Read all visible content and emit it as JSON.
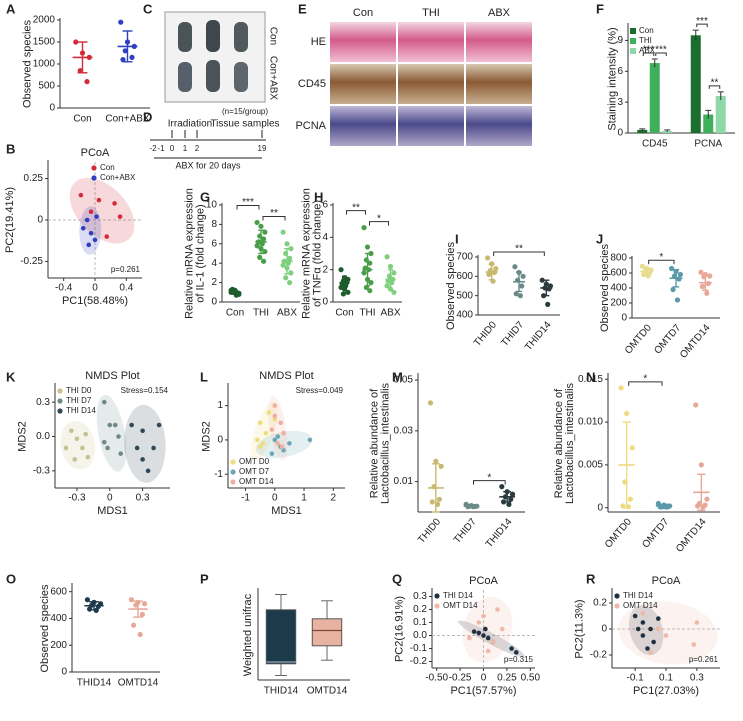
{
  "panel_letters": [
    "A",
    "B",
    "C",
    "D",
    "E",
    "F",
    "G",
    "H",
    "I",
    "J",
    "K",
    "L",
    "M",
    "N",
    "O",
    "P",
    "Q",
    "R"
  ],
  "panel_c": {
    "labels": [
      "Con",
      "Con+ABX"
    ]
  },
  "panel_d": {
    "event": "Irradiation",
    "sample_note": "(n=15/group)",
    "sample_label": "Tissue samples",
    "days": [
      -2,
      -1,
      0,
      1,
      2,
      19
    ],
    "treatment": "ABX for 20 days"
  },
  "panel_e": {
    "columns": [
      "Con",
      "THI",
      "ABX"
    ],
    "rows": [
      "HE",
      "CD45",
      "PCNA"
    ]
  },
  "chart_data": [
    {
      "type": "dot",
      "ylabel": "Observed species",
      "categories": [
        "Con",
        "Con+ABX"
      ],
      "ylim": [
        0,
        2000
      ],
      "yticks": [
        0,
        500,
        1000,
        1500,
        2000
      ],
      "groups": [
        {
          "color": "#d42a3c",
          "values": [
            1500,
            1250,
            1150,
            850,
            600
          ],
          "mean": 1150,
          "sd": 350
        },
        {
          "color": "#2f3fc0",
          "values": [
            1950,
            1500,
            1400,
            1300,
            1150,
            1100
          ],
          "mean": 1400,
          "sd": 350
        }
      ]
    },
    {
      "type": "scatter",
      "title": "PCoA",
      "xlabel": "PC1(58.48%)",
      "ylabel": "PC2(19.41%)",
      "xlim": [
        -0.6,
        0.6
      ],
      "ylim": [
        -0.35,
        0.35
      ],
      "xticks": [
        -0.4,
        0,
        0.4
      ],
      "yticks": [
        -0.25,
        0,
        0.25
      ],
      "annotation": "p=0.261",
      "annotation_corner": "bottom-right",
      "legend": "top-right",
      "zero_lines": true,
      "series": [
        {
          "name": "Con",
          "color": "#d42a3c",
          "x": [
            0.25,
            -0.05,
            0.15,
            0.05,
            0.32,
            -0.18
          ],
          "y": [
            0.1,
            0.05,
            -0.1,
            0.12,
            0.02,
            0.15
          ]
        },
        {
          "name": "Con+ABX",
          "color": "#2f3fc0",
          "x": [
            -0.15,
            -0.05,
            -0.1,
            0,
            0.02,
            -0.08
          ],
          "y": [
            -0.05,
            -0.08,
            0,
            -0.12,
            0.02,
            -0.15
          ]
        }
      ]
    },
    {
      "type": "bar",
      "ylabel": "Staining intensity (%)",
      "categories": [
        "CD45",
        "PCNA"
      ],
      "ylim": [
        0,
        10.5
      ],
      "yticks": [
        0,
        3,
        6,
        9
      ],
      "legend": "top-left",
      "series": [
        {
          "name": "Con",
          "color": "#1a6e2e",
          "values": [
            0.3,
            9.5
          ],
          "errors": [
            0.1,
            0.5
          ]
        },
        {
          "name": "THI",
          "color": "#3faf5a",
          "values": [
            6.8,
            1.8
          ],
          "errors": [
            0.4,
            0.4
          ]
        },
        {
          "name": "ABX",
          "color": "#8fd8a8",
          "values": [
            0.2,
            3.6
          ],
          "errors": [
            0.1,
            0.4
          ]
        }
      ],
      "significance": [
        {
          "category": 0,
          "pair": [
            0,
            1
          ],
          "label": "***"
        },
        {
          "category": 0,
          "pair": [
            1,
            2
          ],
          "label": "***"
        },
        {
          "category": 1,
          "pair": [
            0,
            1
          ],
          "label": "***"
        },
        {
          "category": 1,
          "pair": [
            1,
            2
          ],
          "label": "**"
        }
      ]
    },
    {
      "type": "dot",
      "ylabel": [
        "Relative mRNA expression",
        "of IL-1 (fold change)"
      ],
      "categories": [
        "Con",
        "THI",
        "ABX"
      ],
      "ylim": [
        0,
        10
      ],
      "yticks": [
        0,
        2,
        4,
        6,
        8,
        10
      ],
      "groups": [
        {
          "color": "#1e5c2e",
          "values": [
            1.2,
            1.0,
            0.8,
            1.1,
            0.9,
            1.3,
            0.7,
            1.0,
            1.2,
            0.9,
            1.1,
            0.8
          ],
          "mean": 1.0,
          "sd": 0.2
        },
        {
          "color": "#4a9e4a",
          "values": [
            8.2,
            7.8,
            7.2,
            6.8,
            6.5,
            6.2,
            6.0,
            5.8,
            5.5,
            5.2,
            4.6,
            4.2
          ],
          "mean": 6.2,
          "sd": 1.2
        },
        {
          "color": "#7fcf7f",
          "values": [
            7.2,
            6.0,
            5.5,
            5.0,
            4.5,
            4.2,
            4.0,
            3.8,
            3.5,
            3.0,
            2.5,
            2.0
          ],
          "mean": 4.2,
          "sd": 1.3
        }
      ],
      "significance": [
        {
          "pair": [
            0,
            1
          ],
          "label": "***"
        },
        {
          "pair": [
            1,
            2
          ],
          "label": "**"
        }
      ]
    },
    {
      "type": "dot",
      "ylabel": [
        "Relative mRNA expression",
        "of TNFα (fold change)"
      ],
      "categories": [
        "Con",
        "THI",
        "ABX"
      ],
      "ylim": [
        0,
        6
      ],
      "yticks": [
        0,
        2,
        4,
        6
      ],
      "groups": [
        {
          "color": "#1e5c2e",
          "values": [
            2.0,
            1.5,
            1.4,
            1.3,
            1.2,
            1.1,
            1.0,
            0.9,
            0.8,
            0.6,
            0.5
          ],
          "mean": 1.2,
          "sd": 0.4
        },
        {
          "color": "#4a9e4a",
          "values": [
            4.6,
            3.4,
            3.0,
            2.6,
            2.4,
            2.1,
            2.0,
            1.8,
            1.4,
            1.2,
            0.9,
            0.7
          ],
          "mean": 2.0,
          "sd": 1.0
        },
        {
          "color": "#7fcf7f",
          "values": [
            2.8,
            2.2,
            1.8,
            1.6,
            1.4,
            1.3,
            1.2,
            1.0,
            0.8,
            0.6
          ],
          "mean": 1.4,
          "sd": 0.6
        }
      ],
      "significance": [
        {
          "pair": [
            0,
            1
          ],
          "label": "**"
        },
        {
          "pair": [
            1,
            2
          ],
          "label": "*"
        }
      ]
    },
    {
      "type": "dot",
      "ylabel": "Observed species",
      "categories": [
        "THID0",
        "THID7",
        "THID14"
      ],
      "ylim": [
        400,
        700
      ],
      "yticks": [
        400,
        500,
        600,
        700
      ],
      "groups": [
        {
          "color": "#c8b870",
          "values": [
            695,
            665,
            640,
            630,
            620,
            610,
            575
          ],
          "mean": 622,
          "sd": 40
        },
        {
          "color": "#6a8a88",
          "values": [
            650,
            620,
            600,
            580,
            550,
            510,
            500
          ],
          "mean": 572,
          "sd": 50
        },
        {
          "color": "#2a3a40",
          "values": [
            580,
            560,
            550,
            540,
            535,
            500,
            455
          ],
          "mean": 540,
          "sd": 40
        }
      ],
      "significance": [
        {
          "pair": [
            0,
            2
          ],
          "label": "**"
        }
      ]
    },
    {
      "type": "dot",
      "ylabel": "Observed species",
      "categories": [
        "OMTD0",
        "OMTD7",
        "OMTD14"
      ],
      "ylim": [
        0,
        800
      ],
      "yticks": [
        0,
        200,
        400,
        600,
        800
      ],
      "groups": [
        {
          "color": "#e8dc90",
          "values": [
            690,
            660,
            640,
            620,
            600,
            580,
            560
          ],
          "mean": 620,
          "sd": 45
        },
        {
          "color": "#5a9aaa",
          "values": [
            660,
            620,
            580,
            560,
            520,
            380,
            240
          ],
          "mean": 530,
          "sd": 115
        },
        {
          "color": "#e8a898",
          "values": [
            610,
            580,
            560,
            550,
            460,
            420,
            330
          ],
          "mean": 470,
          "sd": 100
        }
      ],
      "significance": [
        {
          "pair": [
            0,
            1
          ],
          "label": "*"
        }
      ]
    },
    {
      "type": "scatter",
      "title": "NMDS Plot",
      "xlabel": "MDS1",
      "ylabel": "MDS2",
      "xlim": [
        -0.5,
        0.55
      ],
      "ylim": [
        -0.45,
        0.45
      ],
      "xticks": [
        -0.3,
        0,
        0.3
      ],
      "yticks": [
        -0.3,
        {
          "value": 0,
          "label": "0.0"
        },
        0.3
      ],
      "annotation": "Stress=0.154",
      "annotation_corner": "top-right",
      "legend": "top-left",
      "series": [
        {
          "name": "THI D0",
          "color": "#c8c090",
          "x": [
            -0.35,
            -0.3,
            -0.25,
            -0.32,
            -0.2,
            -0.4,
            -0.22
          ],
          "y": [
            0.05,
            -0.02,
            -0.1,
            -0.2,
            -0.18,
            -0.1,
            0.02
          ]
        },
        {
          "name": "THI D7",
          "color": "#708888",
          "x": [
            -0.05,
            0,
            0.05,
            -0.02,
            0.08,
            -0.05,
            0.1
          ],
          "y": [
            0.3,
            0.1,
            0.1,
            -0.1,
            0.0,
            -0.05,
            -0.15
          ]
        },
        {
          "name": "THI D14",
          "color": "#304858",
          "x": [
            0.2,
            0.3,
            0.25,
            0.4,
            0.3,
            0.35,
            0.45
          ],
          "y": [
            0.1,
            0.05,
            -0.1,
            -0.1,
            -0.2,
            -0.3,
            0.1
          ]
        }
      ]
    },
    {
      "type": "scatter",
      "title": "NMDS Plot",
      "xlabel": "MDS1",
      "ylabel": "MDS2",
      "xlim": [
        -1.6,
        2.4
      ],
      "ylim": [
        -1.4,
        1.6
      ],
      "xticks": [
        -1,
        0,
        1,
        2
      ],
      "yticks": [
        -1,
        0,
        1
      ],
      "annotation": "Stress=0.049",
      "annotation_corner": "top-right",
      "legend": "bottom-left",
      "series": [
        {
          "name": "OMT D0",
          "color": "#eedc80",
          "x": [
            -0.5,
            -0.3,
            -0.5,
            -0.2,
            -0.6,
            -0.4,
            0
          ],
          "y": [
            0.5,
            0.2,
            -0.2,
            0.8,
            0,
            -0.1,
            0.6
          ]
        },
        {
          "name": "OMT D7",
          "color": "#6aa8b8",
          "x": [
            0,
            0.2,
            -0.1,
            0.5,
            1.2,
            0.1,
            0.3
          ],
          "y": [
            0,
            -0.2,
            -0.4,
            -0.1,
            0,
            0.1,
            -0.3
          ]
        },
        {
          "name": "OMT D14",
          "color": "#f0b0a0",
          "x": [
            0,
            0.2,
            -0.1,
            0.1,
            0.3,
            0,
            0.25
          ],
          "y": [
            1.0,
            0.5,
            0.3,
            -0.1,
            0.2,
            0.7,
            -0.2
          ]
        }
      ]
    },
    {
      "type": "dot",
      "ylabel": [
        "Relative abundance of",
        "Lactobacillus_intestinalis"
      ],
      "categories": [
        "THID0",
        "THID7",
        "THID14"
      ],
      "ylim": [
        -0.002,
        0.052
      ],
      "yticks": [
        0.01,
        0.03,
        0.05
      ],
      "groups": [
        {
          "color": "#c8b870",
          "values": [
            0.041,
            0.018,
            0.016,
            0.008,
            0.003,
            0.002,
            0.001
          ],
          "mean": 0.0075,
          "sd": 0.0095
        },
        {
          "color": "#6a8a88",
          "values": [
            0.001,
            0.0005,
            0.0003,
            0.0003,
            0.0002,
            0.0001,
            0.0001
          ],
          "mean": 0.0003,
          "sd": 0.0003
        },
        {
          "color": "#2a3a40",
          "values": [
            0.008,
            0.006,
            0.005,
            0.004,
            0.003,
            0.002,
            0.001
          ],
          "mean": 0.004,
          "sd": 0.002
        }
      ],
      "significance": [
        {
          "pair": [
            1,
            2
          ],
          "label": "*"
        }
      ]
    },
    {
      "type": "dot",
      "ylabel": [
        "Relative abundance of",
        "Lactobacillus_intestinalis"
      ],
      "categories": [
        "OMTD0",
        "OMTD7",
        "OMTD14"
      ],
      "ylim": [
        -0.0005,
        0.0155
      ],
      "yticks": [
        0,
        0.005,
        {
          "value": 0.01,
          "label": "0.010"
        },
        0.015
      ],
      "groups": [
        {
          "color": "#eedc80",
          "values": [
            0.014,
            0.011,
            0.007,
            0.003,
            0.001,
            0.0002,
            0.0001
          ],
          "mean": 0.005,
          "sd": 0.005
        },
        {
          "color": "#5a9aaa",
          "values": [
            0.0005,
            0.0003,
            0.0002,
            0.0001,
            0.0001,
            0.0001,
            0.0001
          ],
          "mean": 0.0002,
          "sd": 0.0002
        },
        {
          "color": "#e8a898",
          "values": [
            0.012,
            0.005,
            0.001,
            0.0005,
            0.0003,
            0.0002,
            0.0001
          ],
          "mean": 0.0018,
          "sd": 0.0021
        }
      ],
      "significance": [
        {
          "pair": [
            0,
            1
          ],
          "label": "*"
        }
      ]
    },
    {
      "type": "dot",
      "ylabel": "Observed species",
      "categories": [
        "THID14",
        "OMTD14"
      ],
      "ylim": [
        0,
        650
      ],
      "yticks": [
        0,
        200,
        400,
        600
      ],
      "groups": [
        {
          "color": "#1f3a4a",
          "values": [
            540,
            520,
            510,
            500,
            490,
            470,
            460
          ],
          "mean": 495,
          "sd": 30
        },
        {
          "color": "#e8a898",
          "values": [
            540,
            520,
            510,
            500,
            430,
            350,
            280
          ],
          "mean": 470,
          "sd": 60
        }
      ]
    },
    {
      "type": "box",
      "ylabel": "Weighted unifrac",
      "categories": [
        "THID14",
        "OMTD14"
      ],
      "ylim": [
        0,
        1
      ],
      "groups": [
        {
          "color": "#1c3b4a",
          "whisker_low": 0.05,
          "q1": 0.18,
          "median": 0.2,
          "q3": 0.78,
          "whisker_high": 0.95
        },
        {
          "color": "#e8b2a0",
          "whisker_low": 0.22,
          "q1": 0.38,
          "median": 0.55,
          "q3": 0.68,
          "whisker_high": 0.88
        }
      ]
    },
    {
      "type": "scatter",
      "title": "PCoA",
      "xlabel": "PC1(57.57%)",
      "ylabel": "PC2(16.91%)",
      "xlim": [
        -0.55,
        0.55
      ],
      "ylim": [
        -0.25,
        0.35
      ],
      "xticks": [
        {
          "value": -0.5,
          "label": "-0.50"
        },
        -0.25,
        0,
        0.25,
        {
          "value": 0.5,
          "label": "0.50"
        }
      ],
      "yticks": [
        -0.2,
        -0.1,
        {
          "value": 0,
          "label": "0.0"
        },
        0.1,
        0.2,
        0.3
      ],
      "annotation": "p=0.315",
      "annotation_corner": "bottom-right",
      "legend": "top-left",
      "zero_lines": true,
      "series": [
        {
          "name": "THI D14",
          "color": "#1f3040",
          "x": [
            -0.05,
            0,
            0.05,
            -0.1,
            0.02,
            0.3,
            0.35,
            0.1
          ],
          "y": [
            0.02,
            0.0,
            -0.02,
            0.03,
            0.05,
            -0.1,
            -0.13,
            -0.05
          ]
        },
        {
          "name": "OMT D14",
          "color": "#f0b8a8",
          "x": [
            0.15,
            -0.05,
            0.1,
            0.0,
            -0.15,
            0.2,
            0.05
          ],
          "y": [
            0.2,
            0.1,
            -0.05,
            0.15,
            -0.02,
            0.05,
            -0.12
          ]
        }
      ]
    },
    {
      "type": "scatter",
      "title": "PCoA",
      "xlabel": "PC1(27.03%)",
      "ylabel": "PC2(11.3%)",
      "xlim": [
        -0.25,
        0.45
      ],
      "ylim": [
        -0.3,
        0.3
      ],
      "xticks": [
        -0.1,
        0.1,
        0.3
      ],
      "yticks": [
        -0.2,
        0,
        0.2
      ],
      "annotation": "p=0.261",
      "annotation_corner": "bottom-right",
      "legend": "top-left",
      "zero_lines": true,
      "series": [
        {
          "name": "THI D14",
          "color": "#1f3040",
          "x": [
            -0.1,
            -0.05,
            0,
            -0.05,
            0.02,
            -0.08,
            0.05,
            -0.02
          ],
          "y": [
            0.1,
            0.05,
            0.0,
            -0.05,
            -0.1,
            0,
            0.08,
            -0.15
          ]
        },
        {
          "name": "OMT D14",
          "color": "#f0b8a8",
          "x": [
            0.3,
            -0.05,
            0.1,
            0.28,
            0.0,
            0.05
          ],
          "y": [
            0.05,
            0.12,
            -0.05,
            -0.12,
            -0.18,
            0.0
          ]
        }
      ]
    }
  ]
}
